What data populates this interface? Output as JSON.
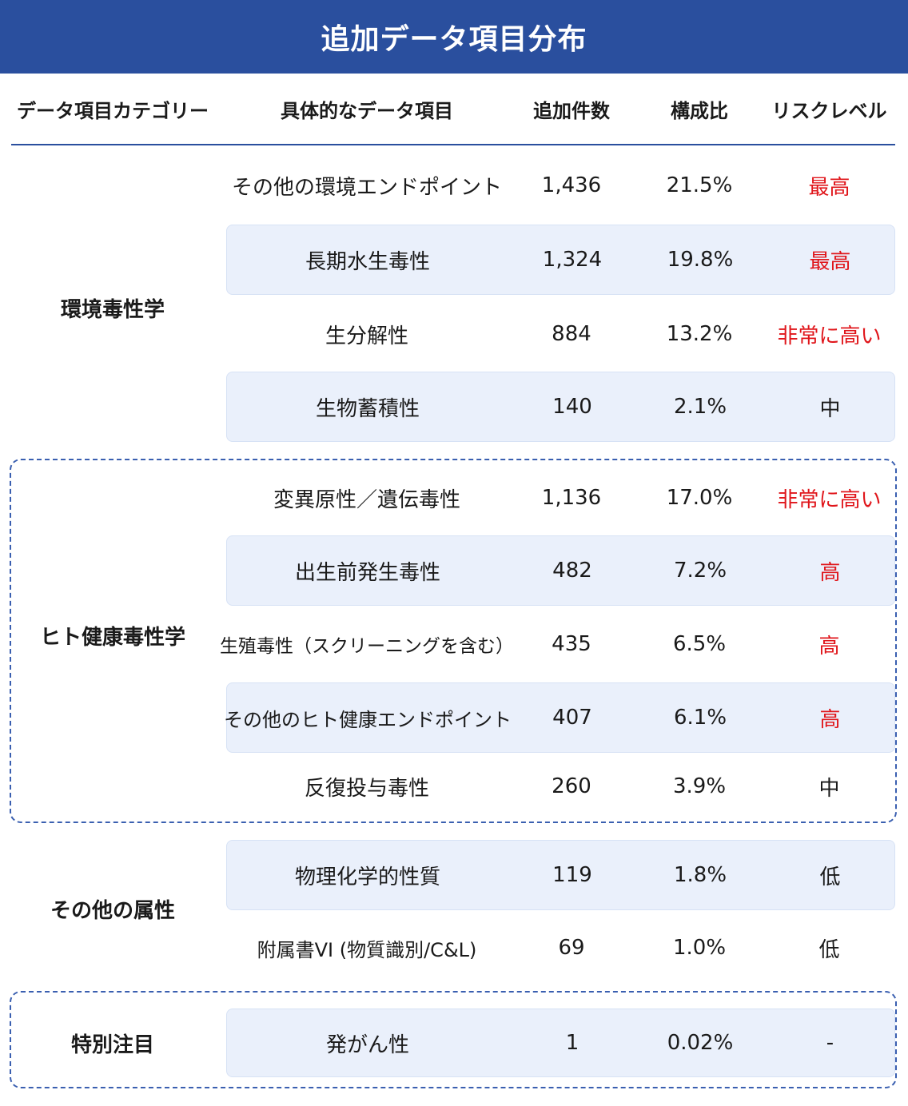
{
  "title": "追加データ項目分布",
  "headers": {
    "category": "データ項目カテゴリー",
    "item": "具体的なデータ項目",
    "count": "追加件数",
    "ratio": "構成比",
    "risk": "リスクレベル"
  },
  "colors": {
    "header_bg": "#2a4f9e",
    "row_shade": "#eaf0fb",
    "risk_high_text": "#e0161b",
    "dashed_border": "#3a5fb0"
  },
  "categories": {
    "env": "環境毒性学",
    "human": "ヒト健康毒性学",
    "other": "その他の属性",
    "special": "特別注目"
  },
  "rows": [
    {
      "item": "その他の環境エンドポイント",
      "count": "1,436",
      "ratio": "21.5%",
      "risk": "最高"
    },
    {
      "item": "長期水生毒性",
      "count": "1,324",
      "ratio": "19.8%",
      "risk": "最高"
    },
    {
      "item": "生分解性",
      "count": "884",
      "ratio": "13.2%",
      "risk": "非常に高い"
    },
    {
      "item": "生物蓄積性",
      "count": "140",
      "ratio": "2.1%",
      "risk": "中"
    },
    {
      "item": "変異原性／遺伝毒性",
      "count": "1,136",
      "ratio": "17.0%",
      "risk": "非常に高い"
    },
    {
      "item": "出生前発生毒性",
      "count": "482",
      "ratio": "7.2%",
      "risk": "高"
    },
    {
      "item": "生殖毒性（スクリーニングを含む）",
      "count": "435",
      "ratio": "6.5%",
      "risk": "高"
    },
    {
      "item": "その他のヒト健康エンドポイント",
      "count": "407",
      "ratio": "6.1%",
      "risk": "高"
    },
    {
      "item": "反復投与毒性",
      "count": "260",
      "ratio": "3.9%",
      "risk": "中"
    },
    {
      "item": "物理化学的性質",
      "count": "119",
      "ratio": "1.8%",
      "risk": "低"
    },
    {
      "item": "附属書VI (物質識別/C&L)",
      "count": "69",
      "ratio": "1.0%",
      "risk": "低"
    },
    {
      "item": "発がん性",
      "count": "1",
      "ratio": "0.02%",
      "risk": "-"
    }
  ]
}
